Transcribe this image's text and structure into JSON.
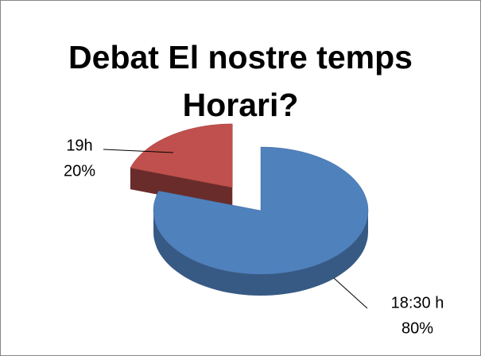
{
  "chart_data": {
    "type": "pie3d",
    "title": "Debat El nostre temps Horari?",
    "categories": [
      "19h",
      "18:30 h"
    ],
    "values": [
      20,
      80
    ],
    "value_labels": [
      "20%",
      "80%"
    ],
    "colors": [
      "#c0504d",
      "#4f81bd"
    ]
  }
}
